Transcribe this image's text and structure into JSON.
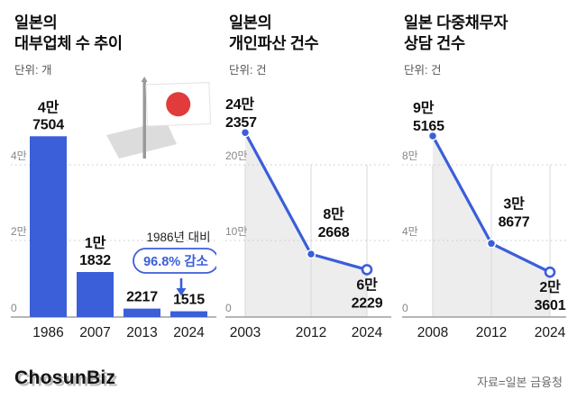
{
  "colors": {
    "accent": "#3b5ed9",
    "area_fill": "#ededed",
    "flag_red": "#e23b3b"
  },
  "footer": {
    "logo": "ChosunBiz",
    "source": "자료=일본 금융청"
  },
  "chart_data": [
    {
      "type": "bar",
      "title_lines": [
        "일본의",
        "대부업체 수 추이"
      ],
      "unit": "단위: 개",
      "icon": "japan-flag-icon",
      "categories": [
        "1986",
        "2007",
        "2013",
        "2024"
      ],
      "values": [
        47504,
        11832,
        2217,
        1515
      ],
      "value_labels": [
        [
          "4만",
          "7504"
        ],
        [
          "1만",
          "1832"
        ],
        [
          "2217"
        ],
        [
          "1515"
        ]
      ],
      "yticks": [
        {
          "label": "4만",
          "value": 40000
        },
        {
          "label": "2만",
          "value": 20000
        },
        {
          "label": "0",
          "value": 0
        }
      ],
      "ylim": [
        0,
        56000
      ],
      "grid": "dotted-horizontal",
      "legend": "none",
      "annotation": {
        "line1": "1986년 대비",
        "badge": "96.8% 감소",
        "arrow": "down"
      }
    },
    {
      "type": "line",
      "title_lines": [
        "일본의",
        "개인파산 건수"
      ],
      "unit": "단위: 건",
      "categories": [
        "2003",
        "2012",
        "2024"
      ],
      "values": [
        242357,
        82668,
        62229
      ],
      "value_labels": [
        [
          "24만",
          "2357"
        ],
        [
          "8만",
          "2668"
        ],
        [
          "6만",
          "2229"
        ]
      ],
      "yticks": [
        {
          "label": "20만",
          "value": 200000
        },
        {
          "label": "10만",
          "value": 100000
        },
        {
          "label": "0",
          "value": 0
        }
      ],
      "ylim": [
        0,
        290000
      ],
      "grid": "dotted-horizontal",
      "legend": "none"
    },
    {
      "type": "line",
      "title_lines": [
        "일본 다중채무자",
        "상담 건수"
      ],
      "unit": "단위: 건",
      "categories": [
        "2008",
        "2012",
        "2024"
      ],
      "values": [
        95165,
        38677,
        23601
      ],
      "value_labels": [
        [
          "9만",
          "5165"
        ],
        [
          "3만",
          "8677"
        ],
        [
          "2만",
          "3601"
        ]
      ],
      "yticks": [
        {
          "label": "8만",
          "value": 80000
        },
        {
          "label": "4만",
          "value": 40000
        },
        {
          "label": "0",
          "value": 0
        }
      ],
      "ylim": [
        0,
        116000
      ],
      "grid": "dotted-horizontal",
      "legend": "none"
    }
  ]
}
